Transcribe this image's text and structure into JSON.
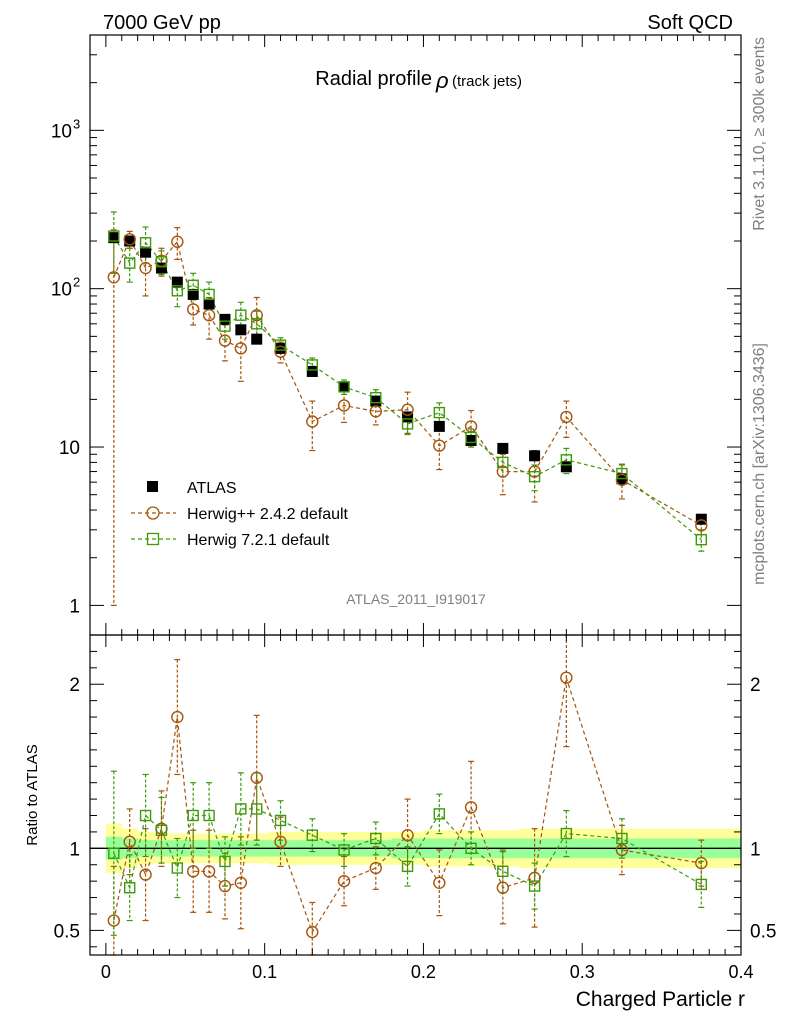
{
  "header": {
    "left": "7000 GeV pp",
    "right": "Soft QCD"
  },
  "side": {
    "rivet": "Rivet 3.1.10, ≥ 300k events",
    "mcplots": "mcplots.cern.ch [arXiv:1306.3436]"
  },
  "chart_data": {
    "type": "scatter",
    "title_main": "Radial profile",
    "title_symbol": "ρ",
    "title_sub": "(track jets)",
    "analysis_tag": "ATLAS_2011_I919017",
    "xlabel": "Charged Particle r",
    "ratio_ylabel": "Ratio to ATLAS",
    "xlim": [
      -0.01,
      0.4
    ],
    "ylim_main": [
      0.65,
      4000
    ],
    "ylim_ratio": [
      0.35,
      2.3
    ],
    "yscale_main": "log",
    "x_ticks": [
      0,
      0.1,
      0.2,
      0.3,
      0.4
    ],
    "x_tick_labels": [
      "0",
      "0.1",
      "0.2",
      "0.3",
      "0.4"
    ],
    "main_y_ticks": [
      1,
      10,
      100,
      1000
    ],
    "main_y_tick_labels": [
      "1",
      "10",
      "10",
      "10"
    ],
    "main_y_tick_exponents": [
      "",
      "",
      "2",
      "3"
    ],
    "ratio_y_ticks": [
      0.5,
      1,
      2
    ],
    "ratio_y_tick_labels": [
      "0.5",
      "1",
      "2"
    ],
    "legend": [
      "ATLAS",
      "Herwig++ 2.4.2 default",
      "Herwig 7.2.1 default"
    ],
    "legend_position": "lower-left",
    "colors": {
      "data": "#000000",
      "herwigpp": "#a6540a",
      "herwig7": "#3d9a0b",
      "band_outer": "#ffff99",
      "band_inner": "#99ff99"
    },
    "x": [
      0.005,
      0.015,
      0.025,
      0.035,
      0.045,
      0.055,
      0.065,
      0.075,
      0.085,
      0.095,
      0.11,
      0.13,
      0.15,
      0.17,
      0.19,
      0.21,
      0.23,
      0.25,
      0.27,
      0.29,
      0.325,
      0.375
    ],
    "series": [
      {
        "name": "ATLAS",
        "values": [
          210,
          200,
          170,
          135,
          110,
          92,
          80,
          64,
          55,
          48,
          42,
          30,
          24,
          19.5,
          15.5,
          13.5,
          11,
          9.8,
          8.8,
          7.5,
          6.3,
          3.5
        ],
        "band_outer": [
          0.15,
          0.12,
          0.1,
          0.09,
          0.09,
          0.09,
          0.09,
          0.09,
          0.09,
          0.09,
          0.1,
          0.1,
          0.1,
          0.1,
          0.1,
          0.11,
          0.11,
          0.11,
          0.12,
          0.12,
          0.12,
          0.12
        ],
        "band_inner": [
          0.07,
          0.06,
          0.05,
          0.05,
          0.05,
          0.05,
          0.05,
          0.05,
          0.05,
          0.05,
          0.05,
          0.05,
          0.05,
          0.05,
          0.06,
          0.06,
          0.06,
          0.06,
          0.06,
          0.06,
          0.06,
          0.06
        ]
      },
      {
        "name": "Herwig++ 2.4.2 default",
        "values": [
          118,
          205,
          135,
          150,
          198,
          74,
          68,
          47,
          42,
          68,
          40,
          14.5,
          18.3,
          16.8,
          17.2,
          10.2,
          13.5,
          7.0,
          7.0,
          15.5,
          6.2,
          3.2
        ],
        "errors": [
          117,
          25,
          45,
          30,
          45,
          15,
          20,
          12,
          16,
          20,
          6,
          5,
          4,
          3,
          5,
          3,
          3.5,
          2,
          2.5,
          4,
          1.5,
          0.4
        ],
        "ratio": [
          0.56,
          1.04,
          0.84,
          1.12,
          1.8,
          0.86,
          0.86,
          0.77,
          0.79,
          1.43,
          1.04,
          0.49,
          0.8,
          0.88,
          1.08,
          0.79,
          1.25,
          0.76,
          0.82,
          2.04,
          0.99,
          0.91
        ],
        "ratio_errors": [
          0.33,
          0.2,
          0.28,
          0.23,
          0.35,
          0.25,
          0.25,
          0.2,
          0.28,
          0.38,
          0.15,
          0.18,
          0.15,
          0.13,
          0.22,
          0.2,
          0.28,
          0.22,
          0.3,
          0.42,
          0.15,
          0.14
        ]
      },
      {
        "name": "Herwig 7.2.1 default",
        "values": [
          215,
          145,
          195,
          148,
          97,
          105,
          92,
          58,
          68,
          60,
          44,
          33,
          24,
          20.5,
          14,
          16.5,
          11.5,
          8.0,
          6.5,
          8.3,
          6.8,
          2.6
        ],
        "errors": [
          90,
          35,
          50,
          25,
          20,
          20,
          18,
          10,
          14,
          12,
          5,
          3.5,
          2.5,
          2.5,
          2,
          2.5,
          1.5,
          1.5,
          1.2,
          1.5,
          1,
          0.4
        ],
        "ratio": [
          0.97,
          0.76,
          1.2,
          1.11,
          0.88,
          1.2,
          1.2,
          0.92,
          1.24,
          1.24,
          1.17,
          1.08,
          0.99,
          1.06,
          0.89,
          1.21,
          1.0,
          0.86,
          0.77,
          1.09,
          1.06,
          0.78
        ],
        "ratio_errors": [
          0.5,
          0.2,
          0.25,
          0.2,
          0.18,
          0.2,
          0.2,
          0.15,
          0.22,
          0.22,
          0.12,
          0.1,
          0.1,
          0.1,
          0.12,
          0.12,
          0.1,
          0.13,
          0.14,
          0.14,
          0.12,
          0.14
        ]
      }
    ]
  }
}
